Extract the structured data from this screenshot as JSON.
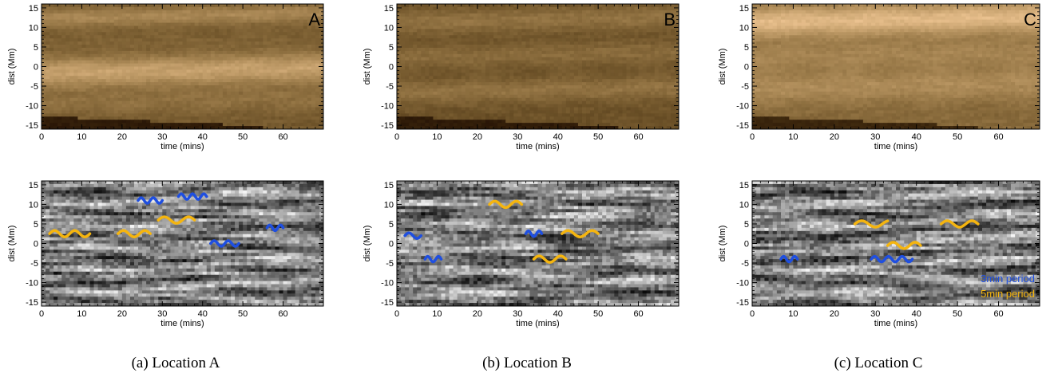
{
  "figure": {
    "captions": [
      "(a) Location A",
      "(b) Location B",
      "(c) Location C"
    ]
  },
  "colors": {
    "three_min": "#1f4fe0",
    "five_min": "#f5b50f",
    "axis": "#000000"
  },
  "chart_data": [
    {
      "id": "A-intensity",
      "type": "heatmap",
      "colormap": "copper",
      "panel_label": "A",
      "xlabel": "time (mins)",
      "ylabel": "dist (Mm)",
      "xlim": [
        0,
        70
      ],
      "ylim": [
        -16,
        16
      ],
      "xticks": [
        0,
        10,
        20,
        30,
        40,
        50,
        60
      ],
      "yticks": [
        -15,
        -10,
        -5,
        0,
        5,
        10,
        15
      ],
      "bands": [
        {
          "y": 13,
          "width": 2.5,
          "level": 0.62
        },
        {
          "y": 7,
          "width": 2.0,
          "level": 0.35
        },
        {
          "y": -1,
          "width": 4.0,
          "level": 0.8
        },
        {
          "y": -9,
          "width": 3.0,
          "level": 0.45
        }
      ],
      "base_level": 0.5,
      "dark_corner_level": 0.05
    },
    {
      "id": "B-intensity",
      "type": "heatmap",
      "colormap": "copper",
      "panel_label": "B",
      "xlabel": "time (mins)",
      "ylabel": "dist (Mm)",
      "xlim": [
        0,
        70
      ],
      "ylim": [
        -16,
        16
      ],
      "xticks": [
        0,
        10,
        20,
        30,
        40,
        50,
        60
      ],
      "yticks": [
        -15,
        -10,
        -5,
        0,
        5,
        10,
        15
      ],
      "bands": [
        {
          "y": 12,
          "width": 3.0,
          "level": 0.5
        },
        {
          "y": 3,
          "width": 3.0,
          "level": 0.45
        },
        {
          "y": -6,
          "width": 3.0,
          "level": 0.5
        }
      ],
      "base_level": 0.45,
      "dark_corner_level": 0.05
    },
    {
      "id": "C-intensity",
      "type": "heatmap",
      "colormap": "copper",
      "panel_label": "C",
      "xlabel": "time (mins)",
      "ylabel": "dist (Mm)",
      "xlim": [
        0,
        70
      ],
      "ylim": [
        -16,
        16
      ],
      "xticks": [
        0,
        10,
        20,
        30,
        40,
        50,
        60
      ],
      "yticks": [
        -15,
        -10,
        -5,
        0,
        5,
        10,
        15
      ],
      "bands": [
        {
          "y": 12,
          "width": 4.0,
          "level": 0.92
        },
        {
          "y": 3,
          "width": 3.5,
          "level": 0.55
        },
        {
          "y": -5,
          "width": 4.0,
          "level": 0.6
        }
      ],
      "base_level": 0.6,
      "dark_corner_level": 0.1
    },
    {
      "id": "A-filtered",
      "type": "heatmap",
      "colormap": "gray",
      "xlabel": "time (mins)",
      "ylabel": "dist (Mm)",
      "xlim": [
        0,
        70
      ],
      "ylim": [
        -16,
        16
      ],
      "xticks": [
        0,
        10,
        20,
        30,
        40,
        50,
        60
      ],
      "yticks": [
        -15,
        -10,
        -5,
        0,
        5,
        10,
        15
      ],
      "oscillations": [
        {
          "period": "3min",
          "t_start": 24,
          "t_end": 30,
          "y": 11,
          "cycles": 2
        },
        {
          "period": "3min",
          "t_start": 34,
          "t_end": 41,
          "y": 12,
          "cycles": 2.5
        },
        {
          "period": "3min",
          "t_start": 56,
          "t_end": 60,
          "y": 4,
          "cycles": 1.5
        },
        {
          "period": "3min",
          "t_start": 42,
          "t_end": 49,
          "y": 0,
          "cycles": 2
        },
        {
          "period": "5min",
          "t_start": 2,
          "t_end": 12,
          "y": 2.5,
          "cycles": 2
        },
        {
          "period": "5min",
          "t_start": 19,
          "t_end": 27,
          "y": 2.5,
          "cycles": 1.5
        },
        {
          "period": "5min",
          "t_start": 29,
          "t_end": 38,
          "y": 6,
          "cycles": 1.5
        }
      ]
    },
    {
      "id": "B-filtered",
      "type": "heatmap",
      "colormap": "gray",
      "xlabel": "time (mins)",
      "ylabel": "dist (Mm)",
      "xlim": [
        0,
        70
      ],
      "ylim": [
        -16,
        16
      ],
      "xticks": [
        0,
        10,
        20,
        30,
        40,
        50,
        60
      ],
      "yticks": [
        -15,
        -10,
        -5,
        0,
        5,
        10,
        15
      ],
      "oscillations": [
        {
          "period": "3min",
          "t_start": 2,
          "t_end": 6,
          "y": 2,
          "cycles": 1
        },
        {
          "period": "3min",
          "t_start": 7,
          "t_end": 11,
          "y": -4,
          "cycles": 1.5
        },
        {
          "period": "3min",
          "t_start": 32,
          "t_end": 36,
          "y": 2.5,
          "cycles": 1.5
        },
        {
          "period": "5min",
          "t_start": 23,
          "t_end": 31,
          "y": 10,
          "cycles": 1.5
        },
        {
          "period": "5min",
          "t_start": 34,
          "t_end": 42,
          "y": -4,
          "cycles": 1.5
        },
        {
          "period": "5min",
          "t_start": 41,
          "t_end": 50,
          "y": 2.5,
          "cycles": 1.5
        }
      ]
    },
    {
      "id": "C-filtered",
      "type": "heatmap",
      "colormap": "gray",
      "xlabel": "time (mins)",
      "ylabel": "dist (Mm)",
      "xlim": [
        0,
        70
      ],
      "ylim": [
        -16,
        16
      ],
      "xticks": [
        0,
        10,
        20,
        30,
        40,
        50,
        60
      ],
      "yticks": [
        -15,
        -10,
        -5,
        0,
        5,
        10,
        15
      ],
      "legend": {
        "placement": "bottom-right",
        "entries": [
          {
            "label": "3min period",
            "color": "#1f4fe0"
          },
          {
            "label": "5min period",
            "color": "#f5b50f"
          }
        ]
      },
      "oscillations": [
        {
          "period": "3min",
          "t_start": 7,
          "t_end": 11,
          "y": -4,
          "cycles": 1.5
        },
        {
          "period": "3min",
          "t_start": 29,
          "t_end": 39,
          "y": -4,
          "cycles": 3
        },
        {
          "period": "5min",
          "t_start": 25,
          "t_end": 33,
          "y": 5,
          "cycles": 1.2
        },
        {
          "period": "5min",
          "t_start": 33,
          "t_end": 41,
          "y": -0.5,
          "cycles": 1.5
        },
        {
          "period": "5min",
          "t_start": 46,
          "t_end": 55,
          "y": 5,
          "cycles": 1.5
        }
      ]
    }
  ]
}
